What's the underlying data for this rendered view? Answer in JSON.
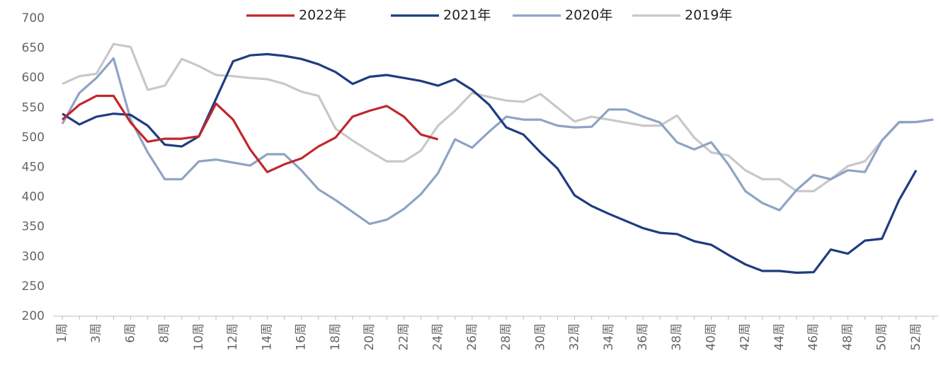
{
  "chart_data": {
    "type": "line",
    "categories": [
      "1周",
      null,
      "3周",
      null,
      "6周",
      null,
      "8周",
      null,
      "10周",
      null,
      "12周",
      null,
      "14周",
      null,
      "16周",
      null,
      "18周",
      null,
      "20周",
      null,
      "22周",
      null,
      "24周",
      null,
      "26周",
      null,
      "28周",
      null,
      "30周",
      null,
      "32周",
      null,
      "34周",
      null,
      "36周",
      null,
      "38周",
      null,
      "40周",
      null,
      "42周",
      null,
      "44周",
      null,
      "46周",
      null,
      "48周",
      null,
      "50周",
      null,
      "52周",
      null
    ],
    "ylim": [
      200,
      700
    ],
    "yticks": [
      200,
      250,
      300,
      350,
      400,
      450,
      500,
      550,
      600,
      650,
      700
    ],
    "grid": false,
    "legend": "top",
    "series": [
      {
        "name": "2022年",
        "color": "#c0272d",
        "values": [
          530,
          555,
          570,
          570,
          525,
          493,
          498,
          498,
          502,
          557,
          530,
          480,
          442,
          455,
          465,
          485,
          500,
          535,
          545,
          553,
          535,
          505,
          497,
          null,
          null,
          null,
          null,
          null,
          null,
          null,
          null,
          null,
          null,
          null,
          null,
          null,
          null,
          null,
          null,
          null,
          null,
          null,
          null,
          null,
          null,
          null,
          null,
          null,
          null,
          null,
          null,
          null
        ]
      },
      {
        "name": "2021年",
        "color": "#1f3c80",
        "values": [
          540,
          522,
          535,
          540,
          538,
          520,
          488,
          485,
          502,
          565,
          628,
          638,
          640,
          637,
          632,
          623,
          610,
          590,
          602,
          605,
          600,
          595,
          587,
          598,
          580,
          555,
          517,
          505,
          475,
          448,
          403,
          385,
          372,
          360,
          348,
          340,
          338,
          326,
          320,
          303,
          287,
          276,
          276,
          273,
          274,
          312,
          305,
          327,
          330,
          395,
          445,
          null
        ]
      },
      {
        "name": "2020年",
        "color": "#8ea3c4",
        "values": [
          523,
          575,
          600,
          633,
          530,
          475,
          430,
          430,
          460,
          463,
          458,
          453,
          472,
          472,
          445,
          413,
          395,
          375,
          355,
          362,
          380,
          405,
          440,
          497,
          483,
          510,
          535,
          530,
          530,
          520,
          517,
          518,
          547,
          547,
          535,
          525,
          492,
          480,
          492,
          455,
          410,
          390,
          378,
          412,
          437,
          430,
          445,
          442,
          495,
          526,
          526,
          530
        ]
      },
      {
        "name": "2019年",
        "color": "#c8c8c8",
        "values": [
          590,
          603,
          607,
          657,
          652,
          580,
          587,
          632,
          620,
          605,
          603,
          600,
          598,
          590,
          577,
          570,
          515,
          495,
          477,
          460,
          460,
          478,
          520,
          545,
          575,
          568,
          562,
          560,
          573,
          550,
          527,
          535,
          530,
          525,
          520,
          520,
          537,
          500,
          475,
          470,
          445,
          430,
          430,
          410,
          410,
          430,
          452,
          460,
          495,
          525,
          526,
          530
        ]
      }
    ]
  }
}
